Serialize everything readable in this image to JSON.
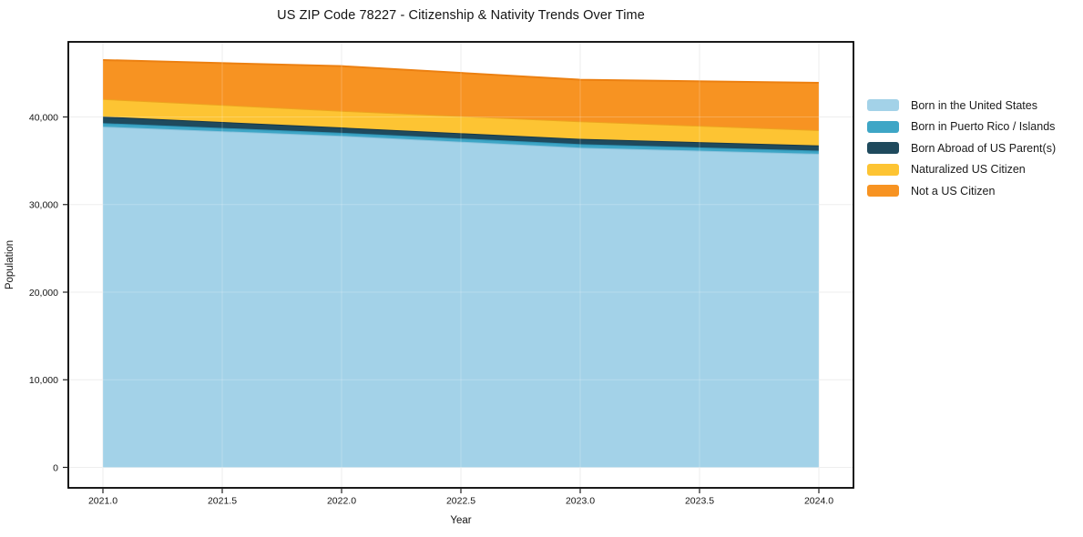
{
  "figure": {
    "title": "US ZIP Code 78227 - Citizenship & Nativity Trends Over Time"
  },
  "chart_data": {
    "type": "area",
    "stacked": true,
    "title": "US ZIP Code 78227 - Citizenship & Nativity Trends Over Time",
    "xlabel": "Year",
    "ylabel": "Population",
    "x": [
      2021,
      2022,
      2023,
      2024
    ],
    "series": [
      {
        "name": "Born in the United States",
        "values": [
          38900,
          37850,
          36500,
          35800
        ],
        "color": "#a3d2e8",
        "line_color": "#8bc3dd"
      },
      {
        "name": "Born in Puerto Rico / Islands",
        "values": [
          400,
          350,
          400,
          350
        ],
        "color": "#3ea6c6",
        "line_color": "#2e93b5"
      },
      {
        "name": "Born Abroad of US Parent(s)",
        "values": [
          750,
          600,
          600,
          600
        ],
        "color": "#1f4a5d",
        "line_color": "#16384a"
      },
      {
        "name": "Naturalized US Citizen",
        "values": [
          2000,
          1900,
          2000,
          1750
        ],
        "color": "#fdc433",
        "line_color": "#eda41f"
      },
      {
        "name": "Not a US Citizen",
        "values": [
          4450,
          5100,
          4750,
          5400
        ],
        "color": "#f79322",
        "line_color": "#ec8011"
      }
    ],
    "stack_totals": [
      46500,
      45800,
      44250,
      43900
    ],
    "x_ticks": {
      "values": [
        2021.0,
        2021.5,
        2022.0,
        2022.5,
        2023.0,
        2023.5,
        2024.0
      ],
      "labels": [
        "2021.0",
        "2021.5",
        "2022.0",
        "2022.5",
        "2023.0",
        "2023.5",
        "2024.0"
      ]
    },
    "y_ticks": {
      "values": [
        0,
        10000,
        20000,
        30000,
        40000
      ],
      "labels": [
        "0",
        "10,000",
        "20,000",
        "30,000",
        "40,000"
      ]
    },
    "xlim": [
      2020.85,
      2024.15
    ],
    "ylim": [
      -2340,
      48570
    ],
    "grid": true,
    "legend_position": "right"
  }
}
